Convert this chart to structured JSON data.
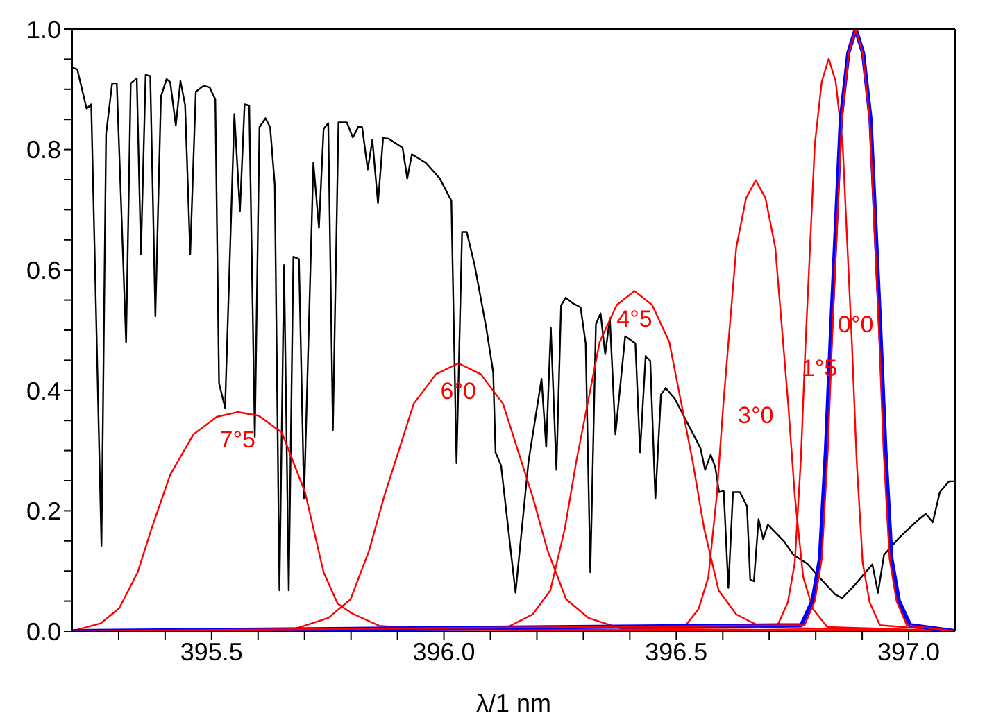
{
  "chart_data": {
    "type": "line",
    "xlabel": "λ/1 nm",
    "xlim": [
      395.2,
      397.1
    ],
    "ylim": [
      0,
      1
    ],
    "xticks": [
      {
        "value": 395.3,
        "label": null
      },
      {
        "value": 395.4,
        "label": null
      },
      {
        "value": 395.5,
        "label": "395.5"
      },
      {
        "value": 395.6,
        "label": null
      },
      {
        "value": 395.7,
        "label": null
      },
      {
        "value": 395.8,
        "label": null
      },
      {
        "value": 395.9,
        "label": null
      },
      {
        "value": 396,
        "label": "396.0"
      },
      {
        "value": 396.1,
        "label": null
      },
      {
        "value": 396.2,
        "label": null
      },
      {
        "value": 396.3,
        "label": null
      },
      {
        "value": 396.4,
        "label": null
      },
      {
        "value": 396.5,
        "label": "396.5"
      },
      {
        "value": 396.6,
        "label": null
      },
      {
        "value": 396.7,
        "label": null
      },
      {
        "value": 396.8,
        "label": null
      },
      {
        "value": 396.9,
        "label": null
      },
      {
        "value": 397,
        "label": "397.0"
      }
    ],
    "yticks": [
      {
        "value": 0,
        "label": "0.0"
      },
      {
        "value": 0.05,
        "label": null
      },
      {
        "value": 0.1,
        "label": null
      },
      {
        "value": 0.15,
        "label": null
      },
      {
        "value": 0.2,
        "label": "0.2"
      },
      {
        "value": 0.25,
        "label": null
      },
      {
        "value": 0.3,
        "label": null
      },
      {
        "value": 0.35,
        "label": null
      },
      {
        "value": 0.4,
        "label": "0.4"
      },
      {
        "value": 0.45,
        "label": null
      },
      {
        "value": 0.5,
        "label": null
      },
      {
        "value": 0.55,
        "label": null
      },
      {
        "value": 0.6,
        "label": "0.6"
      },
      {
        "value": 0.65,
        "label": null
      },
      {
        "value": 0.7,
        "label": null
      },
      {
        "value": 0.75,
        "label": null
      },
      {
        "value": 0.8,
        "label": "0.8"
      },
      {
        "value": 0.85,
        "label": null
      },
      {
        "value": 0.9,
        "label": null
      },
      {
        "value": 0.95,
        "label": null
      },
      {
        "value": 1,
        "label": "1.0"
      }
    ],
    "series": [
      {
        "color": "#000000",
        "x": [
          395.201,
          395.211,
          395.231,
          395.241,
          395.263,
          395.273,
          395.286,
          395.296,
          395.316,
          395.326,
          395.339,
          395.348,
          395.358,
          395.368,
          395.379,
          395.391,
          395.403,
          395.411,
          395.423,
          395.433,
          395.443,
          395.454,
          395.466,
          395.483,
          395.496,
          395.508,
          395.516,
          395.529,
          395.549,
          395.561,
          395.571,
          395.581,
          395.593,
          395.603,
          395.616,
          395.626,
          395.636,
          395.646,
          395.656,
          395.666,
          395.676,
          395.688,
          395.699,
          395.719,
          395.731,
          395.741,
          395.751,
          395.761,
          395.773,
          395.791,
          395.804,
          395.816,
          395.824,
          395.836,
          395.846,
          395.858,
          395.869,
          395.881,
          395.911,
          395.921,
          395.931,
          395.961,
          395.991,
          396.016,
          396.027,
          396.039,
          396.049,
          396.066,
          396.091,
          396.106,
          396.111,
          396.123,
          396.154,
          396.182,
          396.21,
          396.22,
          396.23,
          396.242,
          396.252,
          396.262,
          396.277,
          396.294,
          396.305,
          396.315,
          396.327,
          396.337,
          396.347,
          396.357,
          396.369,
          396.39,
          396.412,
          396.422,
          396.434,
          396.444,
          396.455,
          396.467,
          396.477,
          396.497,
          396.517,
          396.532,
          396.552,
          396.562,
          396.574,
          396.584,
          396.592,
          396.602,
          396.612,
          396.622,
          396.637,
          396.652,
          396.659,
          396.667,
          396.677,
          396.687,
          396.697,
          396.732,
          396.752,
          396.782,
          396.812,
          396.842,
          396.857,
          396.882,
          396.922,
          396.934,
          396.947,
          396.977,
          396.997,
          397.022,
          397.037,
          397.052,
          397.067,
          397.087,
          397.1
        ],
        "values": [
          0.936,
          0.933,
          0.868,
          0.875,
          0.142,
          0.826,
          0.91,
          0.91,
          0.48,
          0.91,
          0.918,
          0.626,
          0.924,
          0.922,
          0.523,
          0.888,
          0.917,
          0.912,
          0.84,
          0.914,
          0.874,
          0.626,
          0.896,
          0.906,
          0.903,
          0.883,
          0.412,
          0.371,
          0.859,
          0.698,
          0.875,
          0.873,
          0.323,
          0.837,
          0.852,
          0.837,
          0.741,
          0.068,
          0.608,
          0.068,
          0.622,
          0.618,
          0.22,
          0.778,
          0.67,
          0.834,
          0.844,
          0.334,
          0.845,
          0.845,
          0.82,
          0.838,
          0.837,
          0.767,
          0.816,
          0.711,
          0.819,
          0.818,
          0.803,
          0.752,
          0.792,
          0.778,
          0.752,
          0.715,
          0.279,
          0.663,
          0.663,
          0.608,
          0.504,
          0.43,
          0.297,
          0.275,
          0.064,
          0.282,
          0.419,
          0.306,
          0.504,
          0.268,
          0.541,
          0.554,
          0.545,
          0.538,
          0.478,
          0.098,
          0.51,
          0.528,
          0.46,
          0.52,
          0.327,
          0.49,
          0.478,
          0.297,
          0.457,
          0.449,
          0.22,
          0.393,
          0.404,
          0.386,
          0.356,
          0.334,
          0.304,
          0.268,
          0.293,
          0.272,
          0.231,
          0.233,
          0.072,
          0.231,
          0.231,
          0.208,
          0.086,
          0.083,
          0.186,
          0.153,
          0.177,
          0.149,
          0.127,
          0.112,
          0.086,
          0.061,
          0.055,
          0.075,
          0.111,
          0.064,
          0.127,
          0.153,
          0.168,
          0.186,
          0.195,
          0.181,
          0.231,
          0.249,
          0.249
        ]
      },
      {
        "name": "7°5",
        "color": "#ff0000",
        "x": [
          395.2,
          395.261,
          395.301,
          395.341,
          395.371,
          395.411,
          395.461,
          395.511,
          395.556,
          395.601,
          395.651,
          395.701,
          395.741,
          395.771,
          395.801,
          395.861,
          395.961,
          397.1
        ],
        "values": [
          0,
          0.013,
          0.038,
          0.098,
          0.171,
          0.26,
          0.327,
          0.356,
          0.364,
          0.358,
          0.33,
          0.231,
          0.098,
          0.046,
          0.03,
          0.009,
          0.003,
          0
        ]
      },
      {
        "name": "6°0",
        "color": "#ff0000",
        "x": [
          395.2,
          395.679,
          395.751,
          395.799,
          395.839,
          395.871,
          395.935,
          395.983,
          396.031,
          396.079,
          396.127,
          396.191,
          396.223,
          396.263,
          396.311,
          396.383,
          397.1
        ],
        "values": [
          0,
          0.004,
          0.022,
          0.053,
          0.134,
          0.223,
          0.378,
          0.427,
          0.445,
          0.427,
          0.378,
          0.223,
          0.134,
          0.053,
          0.022,
          0.004,
          0
        ]
      },
      {
        "name": "4°5",
        "color": "#ff0000",
        "x": [
          395.2,
          396.135,
          396.191,
          396.229,
          396.26,
          396.285,
          396.335,
          396.372,
          396.41,
          396.448,
          396.485,
          396.535,
          396.56,
          396.591,
          396.629,
          396.685,
          397.1
        ],
        "values": [
          0,
          0.006,
          0.028,
          0.068,
          0.17,
          0.283,
          0.48,
          0.542,
          0.565,
          0.542,
          0.48,
          0.283,
          0.17,
          0.068,
          0.028,
          0.006,
          0
        ]
      },
      {
        "name": "3°0",
        "color": "#ff0000",
        "x": [
          395.2,
          396.517,
          396.548,
          396.569,
          396.587,
          396.601,
          396.629,
          396.65,
          396.671,
          396.692,
          396.713,
          396.741,
          396.755,
          396.773,
          396.794,
          396.825,
          397.1
        ],
        "values": [
          0,
          0.007,
          0.037,
          0.09,
          0.225,
          0.375,
          0.637,
          0.719,
          0.749,
          0.719,
          0.637,
          0.375,
          0.225,
          0.09,
          0.037,
          0.007,
          0
        ]
      },
      {
        "name": "1°5",
        "color": "#ff0000",
        "x": [
          395.2,
          396.718,
          396.74,
          396.755,
          396.768,
          396.778,
          396.798,
          396.813,
          396.828,
          396.843,
          396.858,
          396.878,
          396.888,
          396.901,
          396.916,
          396.938,
          397.1
        ],
        "values": [
          0,
          0.01,
          0.048,
          0.114,
          0.285,
          0.476,
          0.808,
          0.913,
          0.951,
          0.913,
          0.808,
          0.476,
          0.285,
          0.114,
          0.048,
          0.01,
          0
        ]
      },
      {
        "color": "#0000ff",
        "x": [
          395.2,
          396.769,
          396.793,
          396.809,
          396.822,
          396.833,
          396.854,
          396.87,
          396.886,
          396.902,
          396.918,
          396.939,
          396.95,
          396.963,
          396.979,
          397.003,
          397.1
        ],
        "values": [
          0,
          0.01,
          0.05,
          0.12,
          0.3,
          0.5,
          0.85,
          0.96,
          1,
          0.96,
          0.85,
          0.5,
          0.3,
          0.12,
          0.05,
          0.01,
          0
        ]
      },
      {
        "name": "0°0",
        "color": "#ff0000",
        "x": [
          395.2,
          396.776,
          396.798,
          396.813,
          396.826,
          396.836,
          396.856,
          396.871,
          396.886,
          396.901,
          396.916,
          396.936,
          396.946,
          396.959,
          396.974,
          396.996,
          397.1
        ],
        "values": [
          0,
          0.01,
          0.05,
          0.12,
          0.3,
          0.5,
          0.85,
          0.96,
          1,
          0.96,
          0.85,
          0.5,
          0.3,
          0.12,
          0.05,
          0.01,
          0
        ]
      }
    ]
  }
}
